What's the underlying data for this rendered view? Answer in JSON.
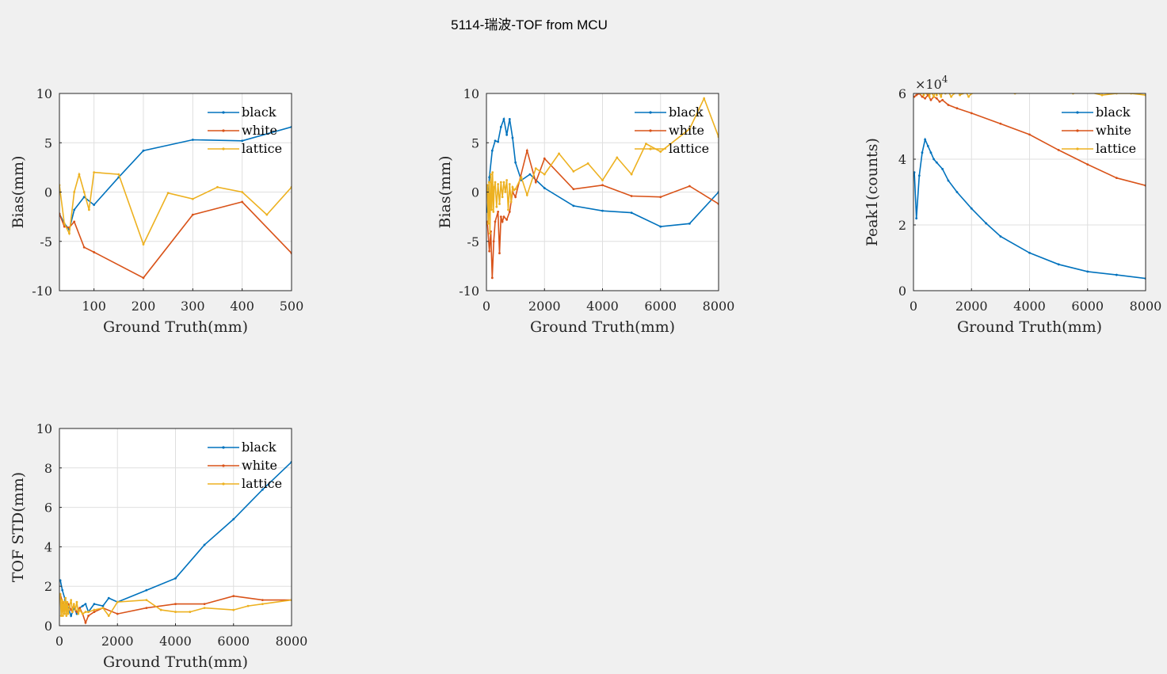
{
  "title": "5114-瑞波-TOF from MCU",
  "colors": {
    "black": "#0072BD",
    "white": "#D95319",
    "lattice": "#EDB120"
  },
  "chart_data": [
    {
      "type": "line",
      "xlabel": "Ground Truth(mm)",
      "ylabel": "Bias(mm)",
      "xlim": [
        30,
        500
      ],
      "ylim": [
        -10,
        10
      ],
      "xticks": [
        100,
        200,
        300,
        400,
        500
      ],
      "yticks": [
        -10,
        -5,
        0,
        5,
        10
      ],
      "grid": true,
      "legend": "top-right",
      "series": [
        {
          "name": "black",
          "x": [
            30,
            40,
            50,
            60,
            80,
            100,
            150,
            200,
            300,
            400,
            500
          ],
          "y": [
            -2.2,
            -3.2,
            -3.8,
            -1.8,
            -0.5,
            -1.3,
            1.5,
            4.2,
            5.3,
            5.2,
            6.6
          ]
        },
        {
          "name": "white",
          "x": [
            30,
            40,
            50,
            60,
            80,
            100,
            200,
            300,
            400,
            500
          ],
          "y": [
            -2.2,
            -3.5,
            -3.6,
            -3.0,
            -5.6,
            -6.1,
            -8.7,
            -2.3,
            -1.0,
            -6.2
          ]
        },
        {
          "name": "lattice",
          "x": [
            30,
            40,
            50,
            60,
            70,
            80,
            90,
            100,
            150,
            200,
            250,
            300,
            350,
            400,
            450,
            500
          ],
          "y": [
            0.7,
            -3.2,
            -4.2,
            0.0,
            1.8,
            0.0,
            -1.8,
            2.0,
            1.8,
            -5.3,
            -0.1,
            -0.7,
            0.5,
            0.0,
            -2.3,
            0.5
          ]
        }
      ]
    },
    {
      "type": "line",
      "xlabel": "Ground Truth(mm)",
      "ylabel": "Bias(mm)",
      "xlim": [
        0,
        8000
      ],
      "ylim": [
        -10,
        10
      ],
      "xticks": [
        0,
        2000,
        4000,
        6000,
        8000
      ],
      "yticks": [
        -10,
        -5,
        0,
        5,
        10
      ],
      "grid": true,
      "legend": "top-right",
      "series": [
        {
          "name": "black",
          "x": [
            30,
            100,
            200,
            300,
            400,
            500,
            600,
            700,
            800,
            900,
            1000,
            1200,
            1500,
            2000,
            3000,
            4000,
            5000,
            6000,
            7000,
            8000
          ],
          "y": [
            -2.0,
            1.5,
            4.2,
            5.2,
            5.1,
            6.6,
            7.4,
            5.8,
            7.4,
            5.5,
            3.0,
            1.2,
            1.8,
            0.4,
            -1.4,
            -1.9,
            -2.1,
            -3.5,
            -3.2,
            0.0
          ]
        },
        {
          "name": "white",
          "x": [
            30,
            100,
            150,
            200,
            250,
            300,
            400,
            450,
            500,
            550,
            600,
            700,
            800,
            900,
            1000,
            1400,
            1700,
            2000,
            3000,
            4000,
            5000,
            6000,
            7000,
            8000
          ],
          "y": [
            -3.0,
            -6.0,
            -4.0,
            -8.7,
            -5.0,
            -3.0,
            -2.0,
            -6.2,
            -2.5,
            -3.0,
            -2.5,
            -2.8,
            -2.0,
            0.0,
            -0.5,
            4.2,
            1.0,
            3.4,
            0.3,
            0.7,
            -0.4,
            -0.5,
            0.6,
            -1.2
          ]
        },
        {
          "name": "lattice",
          "x": [
            30,
            60,
            90,
            120,
            150,
            180,
            210,
            240,
            270,
            300,
            350,
            400,
            450,
            500,
            550,
            600,
            650,
            700,
            750,
            800,
            850,
            900,
            950,
            1000,
            1200,
            1400,
            1700,
            2000,
            2500,
            3000,
            3500,
            4000,
            4500,
            5000,
            5500,
            6000,
            7000,
            7500,
            8000
          ],
          "y": [
            0.7,
            -3.2,
            1.0,
            -4.2,
            1.8,
            -1.8,
            2.0,
            -2.0,
            0.5,
            1.0,
            -1.5,
            0.8,
            -1.2,
            1.0,
            -0.5,
            1.0,
            0.0,
            1.2,
            -1.8,
            0.8,
            -1.0,
            0.5,
            0.2,
            0.3,
            1.5,
            -0.3,
            2.4,
            1.8,
            3.9,
            2.1,
            2.9,
            1.2,
            3.5,
            1.8,
            4.9,
            4.1,
            6.4,
            9.5,
            5.6
          ]
        }
      ]
    },
    {
      "type": "line",
      "xlabel": "Ground Truth(mm)",
      "ylabel": "Peak1(counts)",
      "xlim": [
        0,
        8000
      ],
      "ylim": [
        0,
        6
      ],
      "xticks": [
        0,
        2000,
        4000,
        6000,
        8000
      ],
      "yticks": [
        0,
        2,
        4,
        6
      ],
      "y_multiplier": "×10",
      "y_multiplier_exp": "4",
      "grid": true,
      "legend": "top-right",
      "series": [
        {
          "name": "black",
          "x": [
            30,
            100,
            200,
            300,
            400,
            500,
            600,
            700,
            800,
            1000,
            1200,
            1500,
            2000,
            2500,
            3000,
            4000,
            5000,
            6000,
            7000,
            8000
          ],
          "y": [
            3.6,
            2.2,
            3.5,
            4.2,
            4.6,
            4.4,
            4.2,
            4.0,
            3.9,
            3.7,
            3.35,
            3.0,
            2.5,
            2.05,
            1.65,
            1.15,
            0.8,
            0.58,
            0.48,
            0.37
          ]
        },
        {
          "name": "white",
          "x": [
            30,
            100,
            200,
            300,
            400,
            500,
            600,
            700,
            800,
            900,
            1000,
            1200,
            1500,
            2000,
            3000,
            4000,
            5000,
            6000,
            7000,
            8000
          ],
          "y": [
            5.9,
            5.95,
            6.0,
            5.9,
            5.85,
            5.95,
            5.8,
            5.9,
            5.85,
            5.75,
            5.8,
            5.65,
            5.55,
            5.4,
            5.08,
            4.75,
            4.28,
            3.84,
            3.43,
            3.2
          ]
        },
        {
          "name": "lattice",
          "x": [
            30,
            100,
            150,
            200,
            250,
            300,
            350,
            400,
            450,
            500,
            550,
            600,
            650,
            700,
            750,
            800,
            850,
            900,
            950,
            1000,
            1100,
            1200,
            1300,
            1400,
            1500,
            1600,
            1700,
            1800,
            1900,
            2000,
            2500,
            3000,
            3500,
            4000,
            4500,
            5000,
            5500,
            6000,
            6500,
            7000,
            7500,
            8000
          ],
          "y": [
            6.1,
            6.2,
            6.05,
            6.15,
            6.0,
            6.1,
            5.95,
            6.15,
            6.0,
            6.1,
            5.9,
            6.1,
            6.0,
            5.9,
            6.05,
            5.95,
            6.1,
            6.0,
            5.9,
            6.05,
            6.0,
            6.05,
            5.9,
            6.0,
            6.1,
            5.95,
            6.0,
            6.05,
            5.9,
            6.0,
            6.05,
            6.05,
            6.0,
            6.1,
            6.05,
            6.1,
            6.0,
            6.05,
            5.95,
            6.0,
            6.0,
            5.95
          ]
        }
      ]
    },
    {
      "type": "line",
      "xlabel": "Ground Truth(mm)",
      "ylabel": "TOF STD(mm)",
      "xlim": [
        0,
        8000
      ],
      "ylim": [
        0,
        10
      ],
      "xticks": [
        0,
        2000,
        4000,
        6000,
        8000
      ],
      "yticks": [
        0,
        2,
        4,
        6,
        8,
        10
      ],
      "grid": true,
      "legend": "top-right",
      "series": [
        {
          "name": "black",
          "x": [
            30,
            100,
            200,
            300,
            400,
            500,
            600,
            700,
            800,
            900,
            1000,
            1200,
            1500,
            1700,
            2000,
            3000,
            4000,
            5000,
            6000,
            7000,
            8000
          ],
          "y": [
            2.3,
            1.8,
            1.3,
            0.9,
            0.5,
            0.9,
            0.6,
            0.9,
            1.0,
            1.1,
            0.7,
            1.1,
            1.0,
            1.4,
            1.2,
            1.8,
            2.4,
            4.1,
            5.4,
            6.9,
            8.3
          ]
        },
        {
          "name": "white",
          "x": [
            30,
            100,
            200,
            300,
            400,
            500,
            600,
            700,
            800,
            900,
            1000,
            1200,
            1500,
            2000,
            3000,
            4000,
            5000,
            6000,
            7000,
            8000
          ],
          "y": [
            1.6,
            1.2,
            0.9,
            1.1,
            0.8,
            1.0,
            0.7,
            0.9,
            0.6,
            0.15,
            0.5,
            0.7,
            0.9,
            0.6,
            0.9,
            1.1,
            1.1,
            1.5,
            1.3,
            1.3
          ]
        },
        {
          "name": "lattice",
          "x": [
            30,
            60,
            90,
            120,
            150,
            180,
            210,
            240,
            270,
            300,
            350,
            400,
            450,
            500,
            550,
            600,
            650,
            700,
            800,
            900,
            1000,
            1200,
            1500,
            1700,
            2000,
            3000,
            3500,
            4000,
            4500,
            5000,
            6000,
            6500,
            7000,
            8000
          ],
          "y": [
            1.6,
            0.5,
            1.3,
            0.5,
            1.2,
            0.6,
            1.4,
            0.5,
            1.2,
            0.6,
            1.0,
            1.3,
            0.7,
            1.1,
            0.8,
            1.2,
            0.6,
            0.8,
            0.6,
            0.7,
            0.7,
            0.8,
            0.9,
            0.5,
            1.2,
            1.3,
            0.8,
            0.7,
            0.7,
            0.9,
            0.8,
            1.0,
            1.1,
            1.3
          ]
        }
      ]
    }
  ]
}
